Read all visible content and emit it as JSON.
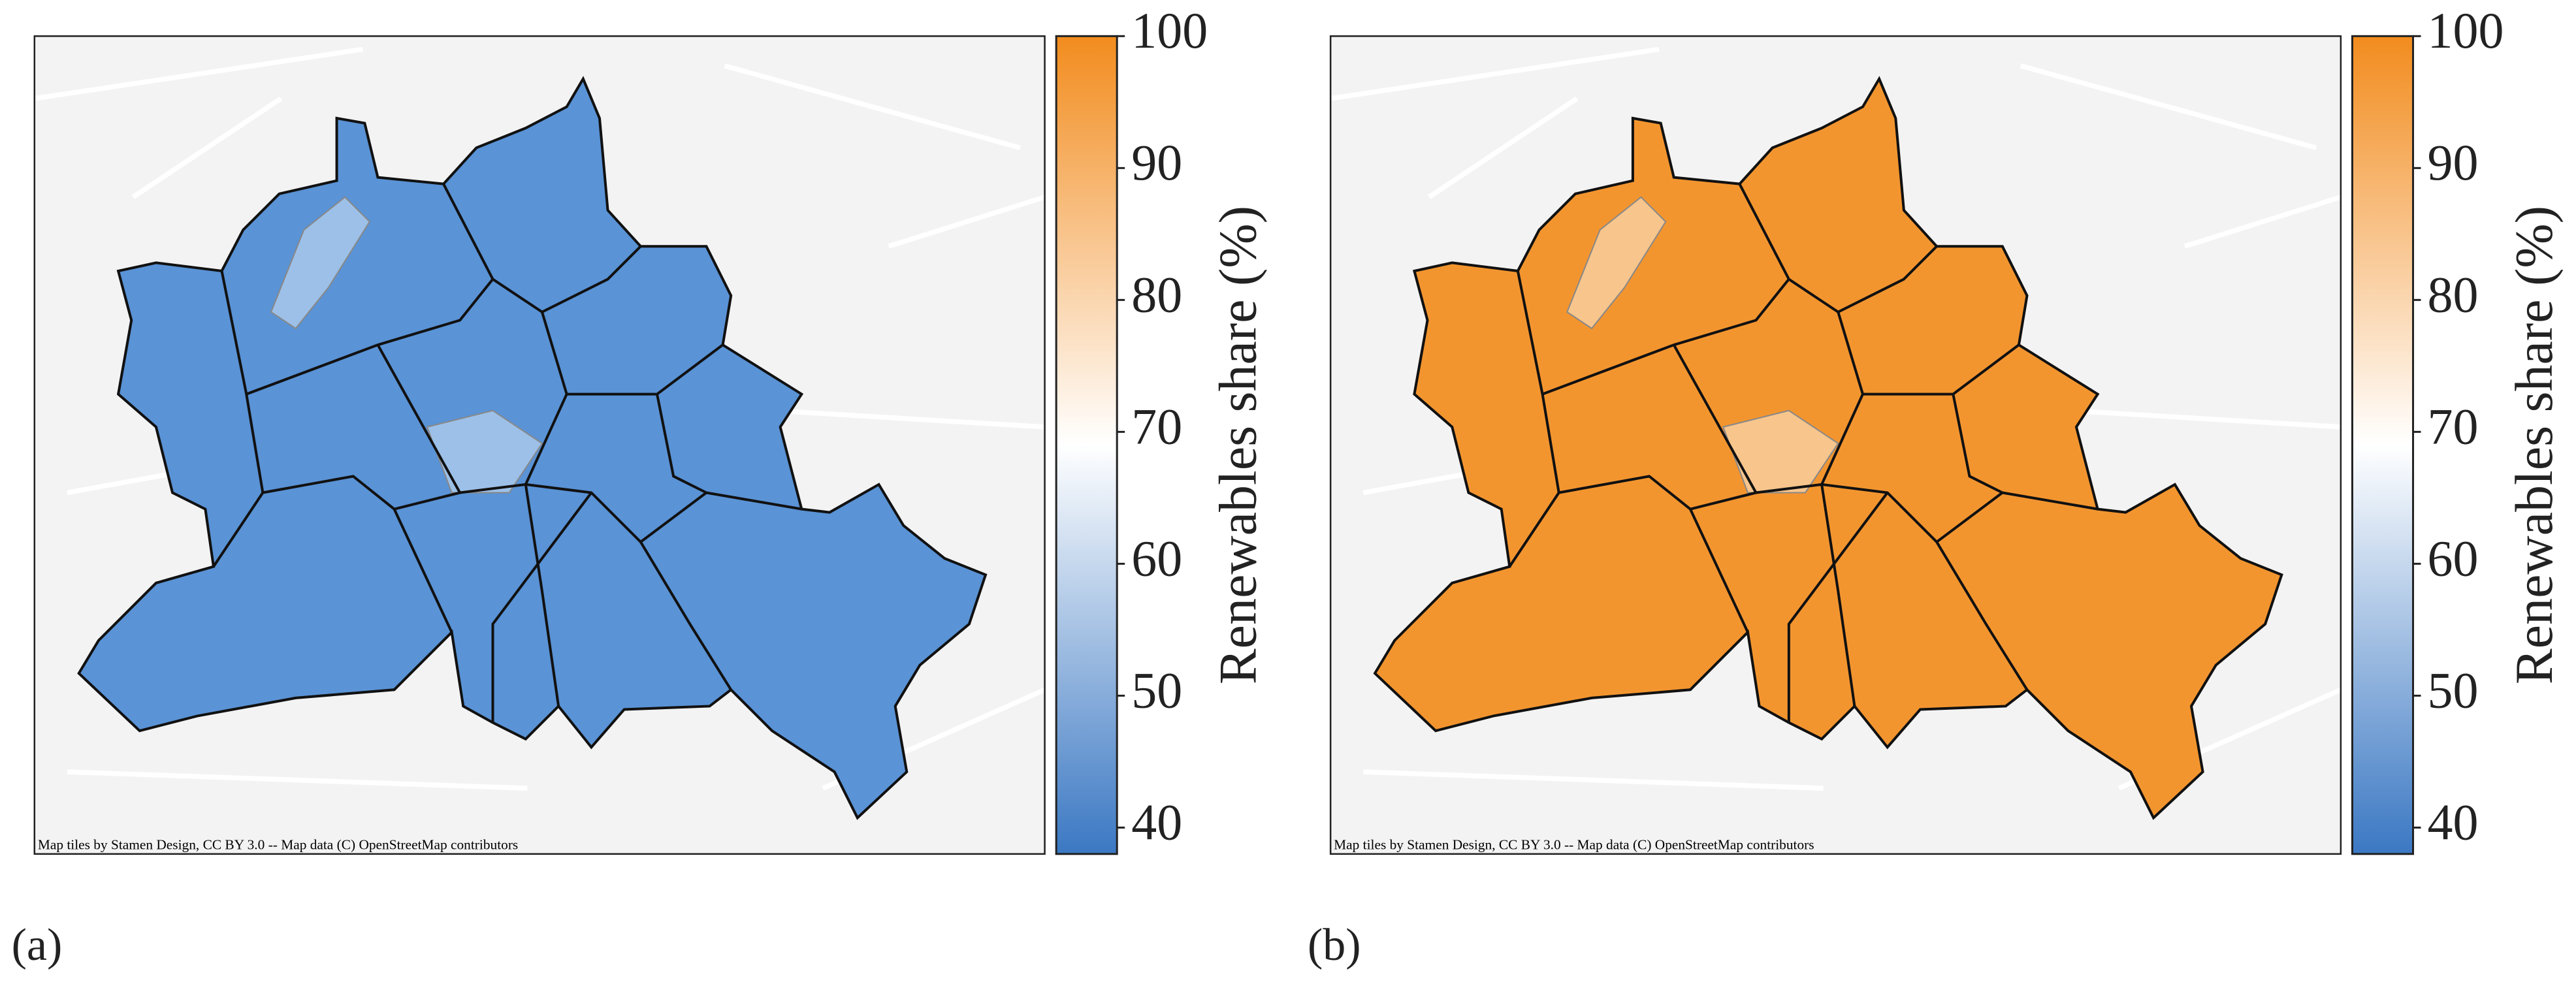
{
  "panels": [
    {
      "label": "(a)",
      "attribution": "Map tiles by Stamen Design, CC BY 3.0 -- Map data (C) OpenStreetMap contributors",
      "fill": "#5a93d6",
      "fill_light": "#9cc0e8",
      "colorbar": {
        "label": "Renewables share (%)",
        "lim": [
          38,
          100
        ],
        "ticks": [
          40,
          50,
          60,
          70,
          80,
          90,
          100
        ],
        "colors": [
          "#3b78c3",
          "#ffffff",
          "#f28c1e"
        ]
      }
    },
    {
      "label": "(b)",
      "attribution": "Map tiles by Stamen Design, CC BY 3.0 -- Map data (C) OpenStreetMap contributors",
      "fill": "#f3952f",
      "fill_light": "#f8c58c",
      "colorbar": {
        "label": "Renewables share (%)",
        "lim": [
          38,
          100
        ],
        "ticks": [
          40,
          50,
          60,
          70,
          80,
          90,
          100
        ],
        "colors": [
          "#3b78c3",
          "#ffffff",
          "#f28c1e"
        ]
      }
    }
  ]
}
